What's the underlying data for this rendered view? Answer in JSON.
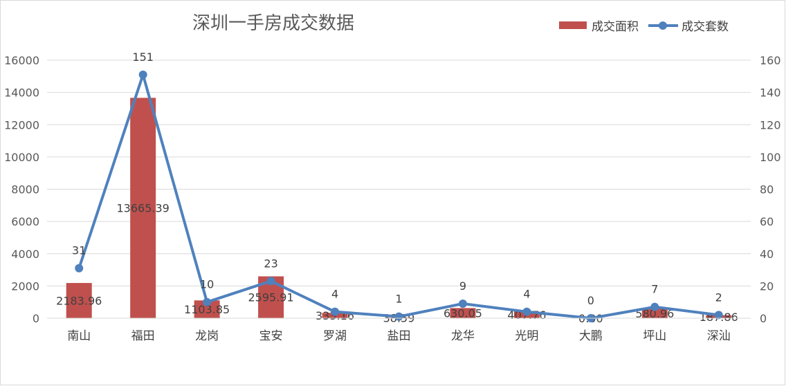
{
  "chart_data": {
    "type": "bar",
    "title": "深圳一手房成交数据",
    "categories": [
      "南山",
      "福田",
      "龙岗",
      "宝安",
      "罗湖",
      "盐田",
      "龙华",
      "光明",
      "大鹏",
      "坪山",
      "深汕"
    ],
    "series": [
      {
        "name": "成交面积",
        "type": "bar",
        "axis": "left",
        "color": "#c0504d",
        "values": [
          2183.96,
          13665.39,
          1103.85,
          2595.91,
          333.16,
          38.59,
          630.05,
          407.76,
          0.0,
          580.96,
          187.86
        ],
        "labels": [
          "2183.96",
          "13665.39",
          "1103.85",
          "2595.91",
          "333.16",
          "38.59",
          "630.05",
          "407.76",
          "0.00",
          "580.96",
          "187.86"
        ]
      },
      {
        "name": "成交套数",
        "type": "line",
        "axis": "right",
        "color": "#4f81bd",
        "values": [
          31,
          151,
          10,
          23,
          4,
          1,
          9,
          4,
          0,
          7,
          2
        ],
        "labels": [
          "31",
          "151",
          "10",
          "23",
          "4",
          "1",
          "9",
          "4",
          "0",
          "7",
          "2"
        ]
      }
    ],
    "y_left": {
      "min": 0,
      "max": 16000,
      "step": 2000,
      "ticks": [
        "0",
        "2000",
        "4000",
        "6000",
        "8000",
        "10000",
        "12000",
        "14000",
        "16000"
      ]
    },
    "y_right": {
      "min": 0,
      "max": 160,
      "step": 20,
      "ticks": [
        "0",
        "20",
        "40",
        "60",
        "80",
        "100",
        "120",
        "140",
        "160"
      ]
    },
    "grid": true,
    "legend": "top-right"
  }
}
